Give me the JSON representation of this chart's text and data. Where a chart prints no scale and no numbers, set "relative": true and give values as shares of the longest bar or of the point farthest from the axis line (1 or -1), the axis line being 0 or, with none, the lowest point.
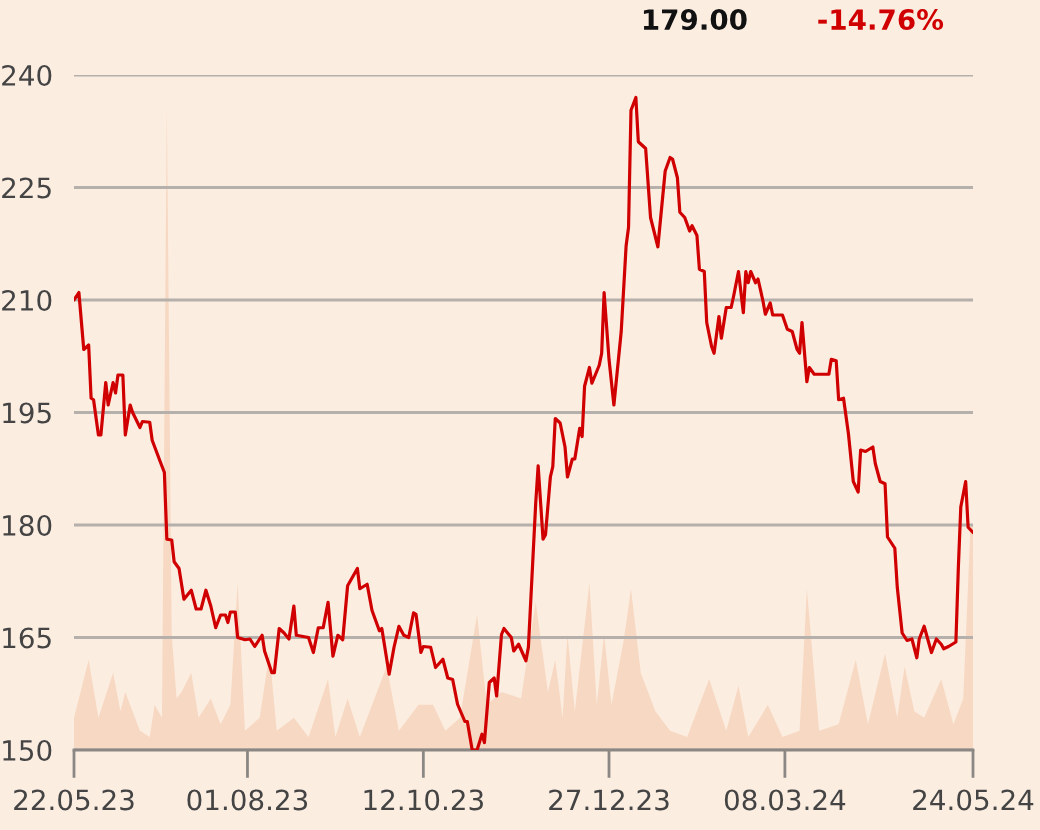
{
  "chart_data": [
    {
      "type": "line",
      "annotations": [
        "179.00",
        "-14.76%"
      ],
      "x": [
        "2023-05-22",
        "2023-05-24",
        "2023-05-26",
        "2023-05-28",
        "2023-05-29",
        "2023-05-30",
        "2023-06-01",
        "2023-06-02",
        "2023-06-04",
        "2023-06-05",
        "2023-06-07",
        "2023-06-08",
        "2023-06-09",
        "2023-06-11",
        "2023-06-12",
        "2023-06-14",
        "2023-06-15",
        "2023-06-18",
        "2023-06-19",
        "2023-06-22",
        "2023-06-23",
        "2023-06-26",
        "2023-06-28",
        "2023-06-29",
        "2023-07-01",
        "2023-07-02",
        "2023-07-04",
        "2023-07-06",
        "2023-07-09",
        "2023-07-11",
        "2023-07-13",
        "2023-07-15",
        "2023-07-17",
        "2023-07-19",
        "2023-07-21",
        "2023-07-23",
        "2023-07-24",
        "2023-07-25",
        "2023-07-27",
        "2023-07-28",
        "2023-07-31",
        "2023-08-02",
        "2023-08-04",
        "2023-08-07",
        "2023-08-08",
        "2023-08-11",
        "2023-08-12",
        "2023-08-14",
        "2023-08-16",
        "2023-08-18",
        "2023-08-20",
        "2023-08-21",
        "2023-08-26",
        "2023-08-28",
        "2023-08-30",
        "2023-09-01",
        "2023-09-03",
        "2023-09-05",
        "2023-09-07",
        "2023-09-09",
        "2023-09-11",
        "2023-09-15",
        "2023-09-16",
        "2023-09-19",
        "2023-09-21",
        "2023-09-24",
        "2023-09-25",
        "2023-09-28",
        "2023-09-30",
        "2023-10-02",
        "2023-10-04",
        "2023-10-06",
        "2023-10-08",
        "2023-10-09",
        "2023-10-11",
        "2023-10-12",
        "2023-10-15",
        "2023-10-17",
        "2023-10-20",
        "2023-10-22",
        "2023-10-24",
        "2023-10-26",
        "2023-10-29",
        "2023-10-30",
        "2023-11-01",
        "2023-11-03",
        "2023-11-05",
        "2023-11-06",
        "2023-11-08",
        "2023-11-10",
        "2023-11-11",
        "2023-11-13",
        "2023-11-14",
        "2023-11-17",
        "2023-11-18",
        "2023-11-20",
        "2023-11-23",
        "2023-11-24",
        "2023-11-27",
        "2023-11-28",
        "2023-11-30",
        "2023-12-01",
        "2023-12-03",
        "2023-12-04",
        "2023-12-05",
        "2023-12-07",
        "2023-12-09",
        "2023-12-10",
        "2023-12-12",
        "2023-12-13",
        "2023-12-15",
        "2023-12-16",
        "2023-12-17",
        "2023-12-19",
        "2023-12-20",
        "2023-12-23",
        "2023-12-24",
        "2023-12-25",
        "2023-12-27",
        "2023-12-29",
        "2024-01-01",
        "2024-01-03",
        "2024-01-04",
        "2024-01-05",
        "2024-01-07",
        "2024-01-08",
        "2024-01-11",
        "2024-01-13",
        "2024-01-14",
        "2024-01-16",
        "2024-01-19",
        "2024-01-21",
        "2024-01-22",
        "2024-01-24",
        "2024-01-25",
        "2024-01-27",
        "2024-01-29",
        "2024-01-30",
        "2024-02-01",
        "2024-02-02",
        "2024-02-04",
        "2024-02-05",
        "2024-02-07",
        "2024-02-08",
        "2024-02-10",
        "2024-02-11",
        "2024-02-13",
        "2024-02-15",
        "2024-02-16",
        "2024-02-18",
        "2024-02-20",
        "2024-02-21",
        "2024-02-22",
        "2024-02-23",
        "2024-02-25",
        "2024-02-26",
        "2024-02-28",
        "2024-02-29",
        "2024-03-02",
        "2024-03-03",
        "2024-03-07",
        "2024-03-09",
        "2024-03-11",
        "2024-03-13",
        "2024-03-14",
        "2024-03-15",
        "2024-03-17",
        "2024-03-18",
        "2024-03-20",
        "2024-03-26",
        "2024-03-27",
        "2024-03-29",
        "2024-03-30",
        "2024-04-01",
        "2024-04-03",
        "2024-04-05",
        "2024-04-07",
        "2024-04-08",
        "2024-04-10",
        "2024-04-13",
        "2024-04-14",
        "2024-04-16",
        "2024-04-18",
        "2024-04-19",
        "2024-04-22",
        "2024-04-23",
        "2024-04-25",
        "2024-04-27",
        "2024-04-29",
        "2024-05-01",
        "2024-05-02",
        "2024-05-04",
        "2024-05-07",
        "2024-05-09",
        "2024-05-11",
        "2024-05-12",
        "2024-05-14",
        "2024-05-17",
        "2024-05-18",
        "2024-05-19",
        "2024-05-21",
        "2024-05-22",
        "2024-05-24"
      ],
      "series": [
        {
          "color": "#d00000",
          "values": [
            210.0,
            211.0,
            203.4,
            204.0,
            196.9,
            196.7,
            192.0,
            192.0,
            199.0,
            196.0,
            199.0,
            197.6,
            200.0,
            200.0,
            192.0,
            196.0,
            195.0,
            193.0,
            193.8,
            193.7,
            191.3,
            188.7,
            187.0,
            178.1,
            178.0,
            175.1,
            174.2,
            170.1,
            171.3,
            168.8,
            168.8,
            171.3,
            169.2,
            166.3,
            168.0,
            168.0,
            167.0,
            168.4,
            168.4,
            165.0,
            164.7,
            164.8,
            163.8,
            165.3,
            163.2,
            160.3,
            160.3,
            166.2,
            165.6,
            164.8,
            169.2,
            165.3,
            165.0,
            163.0,
            166.3,
            166.3,
            169.7,
            162.5,
            165.3,
            164.7,
            171.9,
            174.2,
            171.5,
            172.1,
            168.6,
            165.9,
            166.2,
            160.1,
            163.7,
            166.5,
            165.3,
            165.0,
            168.3,
            168.1,
            163.0,
            163.8,
            163.7,
            161.0,
            162.1,
            159.6,
            159.4,
            156.1,
            153.8,
            153.8,
            150.0,
            150.0,
            152.1,
            151.0,
            159.0,
            159.6,
            157.2,
            165.4,
            166.2,
            165.0,
            163.2,
            164.1,
            161.9,
            163.7,
            182.9,
            187.9,
            178.1,
            178.7,
            186.4,
            187.8,
            194.2,
            193.6,
            190.4,
            186.4,
            188.8,
            188.8,
            192.9,
            191.8,
            198.5,
            201.0,
            198.9,
            201.3,
            202.9,
            211.0,
            202.1,
            196.0,
            205.8,
            217.2,
            219.7,
            235.3,
            237.0,
            231.1,
            230.2,
            221.0,
            219.7,
            217.1,
            227.2,
            229.0,
            228.8,
            226.3,
            221.7,
            221.0,
            219.2,
            219.9,
            218.6,
            214.1,
            213.8,
            207.0,
            203.8,
            202.9,
            207.8,
            204.9,
            209.0,
            209.0,
            210.5,
            213.8,
            208.3,
            213.8,
            212.3,
            213.8,
            212.3,
            212.8,
            209.9,
            208.1,
            209.6,
            208.0,
            208.0,
            206.1,
            205.8,
            203.4,
            202.9,
            207.0,
            199.1,
            201.0,
            200.1,
            200.1,
            202.1,
            201.9,
            196.7,
            196.9,
            192.2,
            185.8,
            184.4,
            190.0,
            189.8,
            190.4,
            188.2,
            185.8,
            185.5,
            178.4,
            176.9,
            171.7,
            165.6,
            164.6,
            164.8,
            162.3,
            164.8,
            166.5,
            163.0,
            164.8,
            164.1,
            163.5,
            163.8,
            164.4,
            174.3,
            182.4,
            185.8,
            179.7,
            179.0
          ]
        }
      ],
      "xlim": [
        "2023-05-22",
        "2024-05-24"
      ],
      "xticks": [
        {
          "value": "2023-05-22",
          "label": "22.05.23"
        },
        {
          "value": "2023-08-01",
          "label": "01.08.23"
        },
        {
          "value": "2023-10-12",
          "label": "12.10.23"
        },
        {
          "value": "2023-12-27",
          "label": "27.12.23"
        },
        {
          "value": "2024-03-08",
          "label": "08.03.24"
        },
        {
          "value": "2024-05-24",
          "label": "24.05.24"
        }
      ],
      "ylim": [
        150,
        240
      ],
      "yticks": [
        150,
        165,
        180,
        195,
        210,
        225,
        240
      ],
      "grid": "y"
    },
    {
      "type": "area",
      "relative": true,
      "color": "#f7d9c3",
      "tick_labels": false,
      "xlim": [
        "2023-05-22",
        "2024-05-24"
      ],
      "x": [
        "2023-05-22",
        "2023-05-28",
        "2023-06-01",
        "2023-06-07",
        "2023-06-10",
        "2023-06-12",
        "2023-06-18",
        "2023-06-22",
        "2023-06-24",
        "2023-06-27",
        "2023-06-29",
        "2023-07-01",
        "2023-07-03",
        "2023-07-05",
        "2023-07-09",
        "2023-07-12",
        "2023-07-17",
        "2023-07-21",
        "2023-07-25",
        "2023-07-28",
        "2023-07-31",
        "2023-08-06",
        "2023-08-10",
        "2023-08-13",
        "2023-08-20",
        "2023-08-26",
        "2023-09-03",
        "2023-09-06",
        "2023-09-11",
        "2023-09-16",
        "2023-09-22",
        "2023-09-27",
        "2023-10-02",
        "2023-10-10",
        "2023-10-16",
        "2023-10-21",
        "2023-10-27",
        "2023-11-03",
        "2023-11-07",
        "2023-11-13",
        "2023-11-21",
        "2023-11-27",
        "2023-12-02",
        "2023-12-05",
        "2023-12-08",
        "2023-12-10",
        "2023-12-13",
        "2023-12-19",
        "2023-12-22",
        "2023-12-25",
        "2023-12-28",
        "2024-01-02",
        "2024-01-05",
        "2024-01-09",
        "2024-01-15",
        "2024-01-21",
        "2024-01-28",
        "2024-02-06",
        "2024-02-13",
        "2024-02-18",
        "2024-02-22",
        "2024-03-01",
        "2024-03-07",
        "2024-03-14",
        "2024-03-17",
        "2024-03-22",
        "2024-03-30",
        "2024-04-06",
        "2024-04-11",
        "2024-04-18",
        "2024-04-23",
        "2024-04-26",
        "2024-04-30",
        "2024-05-04",
        "2024-05-11",
        "2024-05-16",
        "2024-05-20",
        "2024-05-23",
        "2024-05-24"
      ],
      "values": [
        0.05,
        0.14,
        0.05,
        0.12,
        0.06,
        0.09,
        0.03,
        0.02,
        0.07,
        0.05,
        1.0,
        0.18,
        0.08,
        0.09,
        0.12,
        0.05,
        0.08,
        0.04,
        0.07,
        0.26,
        0.03,
        0.05,
        0.15,
        0.03,
        0.05,
        0.02,
        0.11,
        0.02,
        0.08,
        0.02,
        0.08,
        0.13,
        0.03,
        0.07,
        0.07,
        0.03,
        0.05,
        0.21,
        0.07,
        0.09,
        0.08,
        0.23,
        0.09,
        0.14,
        0.05,
        0.18,
        0.06,
        0.26,
        0.07,
        0.18,
        0.07,
        0.17,
        0.25,
        0.12,
        0.06,
        0.03,
        0.02,
        0.11,
        0.03,
        0.1,
        0.02,
        0.07,
        0.02,
        0.03,
        0.25,
        0.03,
        0.04,
        0.14,
        0.04,
        0.15,
        0.05,
        0.13,
        0.06,
        0.05,
        0.11,
        0.04,
        0.08,
        0.35,
        0.35
      ]
    }
  ]
}
